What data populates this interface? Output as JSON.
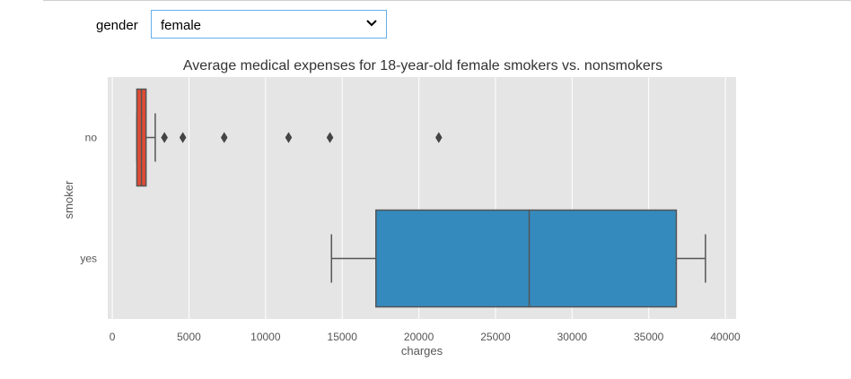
{
  "controls": {
    "gender_label": "gender",
    "gender_value": "female",
    "gender_icon": "chevron-down-icon"
  },
  "chart_data": {
    "type": "boxplot",
    "orientation": "horizontal",
    "title": "Average medical expenses for 18-year-old female smokers vs. nonsmokers",
    "xlabel": "charges",
    "ylabel": "smoker",
    "xlim": [
      -300,
      40700
    ],
    "xticks": [
      0,
      5000,
      10000,
      15000,
      20000,
      25000,
      30000,
      35000,
      40000
    ],
    "grid": true,
    "categories": [
      "no",
      "yes"
    ],
    "boxes": [
      {
        "category": "no",
        "color": "#e24a33",
        "whisker_low": 1600,
        "q1": 1600,
        "median": 1900,
        "q3": 2200,
        "whisker_high": 2800,
        "outliers": [
          3400,
          4600,
          7300,
          11500,
          14200,
          21300
        ]
      },
      {
        "category": "yes",
        "color": "#348abd",
        "whisker_low": 14300,
        "q1": 17200,
        "median": 27200,
        "q3": 36800,
        "whisker_high": 38700,
        "outliers": []
      }
    ],
    "colors": {
      "background": "#e5e5e5",
      "grid": "#ffffff",
      "lines": "#555555"
    }
  }
}
